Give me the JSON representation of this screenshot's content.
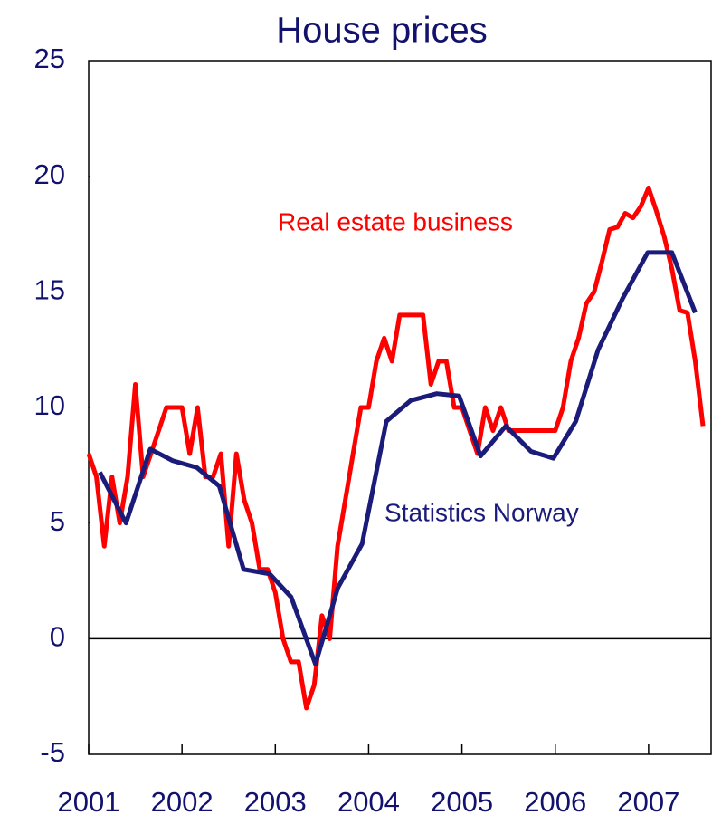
{
  "chart_data": {
    "type": "line",
    "title": "House prices",
    "annotations": [
      "Real estate business",
      "Statistics Norway"
    ],
    "xlim": [
      2001,
      2007.67
    ],
    "xticks": [
      2001,
      2002,
      2003,
      2004,
      2005,
      2006,
      2007
    ],
    "ylim": [
      -5,
      25
    ],
    "yticks": [
      -5,
      0,
      5,
      10,
      15,
      20,
      25
    ],
    "series": [
      {
        "name": "Real estate business",
        "color": "#ff0000",
        "x": [
          2001,
          2001.083,
          2001.167,
          2001.25,
          2001.333,
          2001.417,
          2001.5,
          2001.583,
          2001.667,
          2001.75,
          2001.833,
          2001.917,
          2002,
          2002.083,
          2002.167,
          2002.25,
          2002.333,
          2002.417,
          2002.5,
          2002.583,
          2002.667,
          2002.75,
          2002.833,
          2002.917,
          2003,
          2003.083,
          2003.167,
          2003.25,
          2003.333,
          2003.417,
          2003.5,
          2003.583,
          2003.667,
          2003.75,
          2003.833,
          2003.917,
          2004,
          2004.083,
          2004.167,
          2004.25,
          2004.333,
          2004.417,
          2004.5,
          2004.583,
          2004.667,
          2004.75,
          2004.833,
          2004.917,
          2005,
          2005.083,
          2005.167,
          2005.25,
          2005.333,
          2005.417,
          2005.5,
          2005.583,
          2005.667,
          2005.75,
          2005.833,
          2005.917,
          2006,
          2006.083,
          2006.167,
          2006.25,
          2006.333,
          2006.417,
          2006.5,
          2006.583,
          2006.667,
          2006.75,
          2006.833,
          2006.917,
          2007,
          2007.083,
          2007.167,
          2007.25,
          2007.333,
          2007.417,
          2007.5,
          2007.583
        ],
        "values": [
          8,
          7,
          4,
          7,
          5,
          7,
          11,
          7,
          8,
          9,
          10,
          10,
          10,
          8,
          10,
          7,
          7,
          8,
          4,
          8,
          6,
          5,
          3,
          3,
          2,
          0,
          -1,
          -1,
          -3,
          -2,
          1,
          0,
          4,
          6,
          8,
          10,
          10,
          12,
          13,
          12,
          14,
          14,
          14,
          14,
          11,
          12,
          12,
          10,
          10,
          9,
          8,
          10,
          9,
          10,
          9,
          9,
          9,
          9,
          9,
          9,
          9,
          10,
          12,
          13,
          14.5,
          15,
          16.3,
          17.7,
          17.8,
          18.4,
          18.2,
          18.7,
          19.5,
          18.5,
          17.4,
          16,
          14.2,
          14.1,
          12,
          9.2
        ]
      },
      {
        "name": "Statistics Norway",
        "color": "#1b1b7a",
        "x": [
          2001.12,
          2001.4,
          2001.66,
          2001.9,
          2002.16,
          2002.4,
          2002.66,
          2002.94,
          2003.17,
          2003.43,
          2003.67,
          2003.93,
          2004.19,
          2004.45,
          2004.73,
          2004.97,
          2005.2,
          2005.47,
          2005.74,
          2005.98,
          2006.22,
          2006.46,
          2006.72,
          2006.99,
          2007.25,
          2007.5
        ],
        "values": [
          7.2,
          5,
          8.2,
          7.7,
          7.4,
          6.6,
          3,
          2.8,
          1.8,
          -1.1,
          2.2,
          4.1,
          9.4,
          10.3,
          10.6,
          10.5,
          7.9,
          9.2,
          8.1,
          7.8,
          9.4,
          12.5,
          14.7,
          16.7,
          16.7,
          14.1
        ]
      }
    ]
  }
}
